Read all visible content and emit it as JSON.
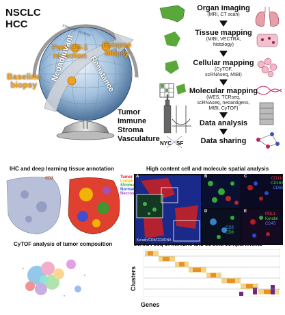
{
  "header": {
    "title_line1": "NSCLC",
    "title_line2": "HCC"
  },
  "globe": {
    "post_pd1": "Post-PD-1\nresection",
    "relapse": "Relapse\nbiopsy",
    "baseline": "Baseline\nbiopsy",
    "neoadjuvant": "Neoadjuvant",
    "resistance": "Resistance",
    "immune_system": "Immune System"
  },
  "compartments": [
    "Tumor",
    "Immune",
    "Stroma",
    "Vasculature"
  ],
  "cities": {
    "nyc": "NYC",
    "sf": "SF"
  },
  "pipeline": [
    {
      "title": "Organ imaging",
      "sub": "(MRI, CT scan)"
    },
    {
      "title": "Tissue mapping",
      "sub": "(MIBI, VECTRA,\nhistology)"
    },
    {
      "title": "Cellular mapping",
      "sub": "(CyTOF,\nscRNAseq, MIBI)"
    },
    {
      "title": "Molecular mapping",
      "sub": "(WES, TCRseq,\nscRNAseq, neoantigens,\nMIBI, CyTOF)"
    },
    {
      "title": "Data analysis",
      "sub": ""
    },
    {
      "title": "Data sharing",
      "sub": ""
    }
  ],
  "panels": {
    "ihc_title": "IHC and deep learning tissue annotation",
    "ihc_cd3": "CD3",
    "ihc_legend": [
      "Tumor",
      "Lymphs",
      "Stroma",
      "Normal",
      "Necrosis"
    ],
    "ihc_legend_colors": [
      "#e02020",
      "#f5c000",
      "#30a030",
      "#3050e0",
      "#a050c0"
    ],
    "spatial_title": "High content cell and molecule spatial analysis",
    "spatial_letters": [
      "A",
      "B",
      "C",
      "D",
      "E"
    ],
    "spatial_caption": "Keratin/CD8/CD3/DNA",
    "spatial_c_labels": [
      "CD11c",
      "CD163",
      "CD68"
    ],
    "spatial_d_labels": [
      "CD3",
      "CD8"
    ],
    "spatial_e_labels": [
      "PDL1",
      "Keratin",
      "CD45"
    ],
    "cytof_title": "CyTOF analysis of tumor composition",
    "scrna_title": "scRNA-seq of immune and stroma compartments",
    "clusters_label": "Clusters",
    "genes_label": "Genes"
  },
  "colors": {
    "globe_blue": "#8fb4d8",
    "globe_dark": "#3a5f8a",
    "orange_label": "#f0a020",
    "green_map": "#5aa83a",
    "heatmap_hot": "#e89020",
    "heatmap_purple": "#6a2a80"
  }
}
